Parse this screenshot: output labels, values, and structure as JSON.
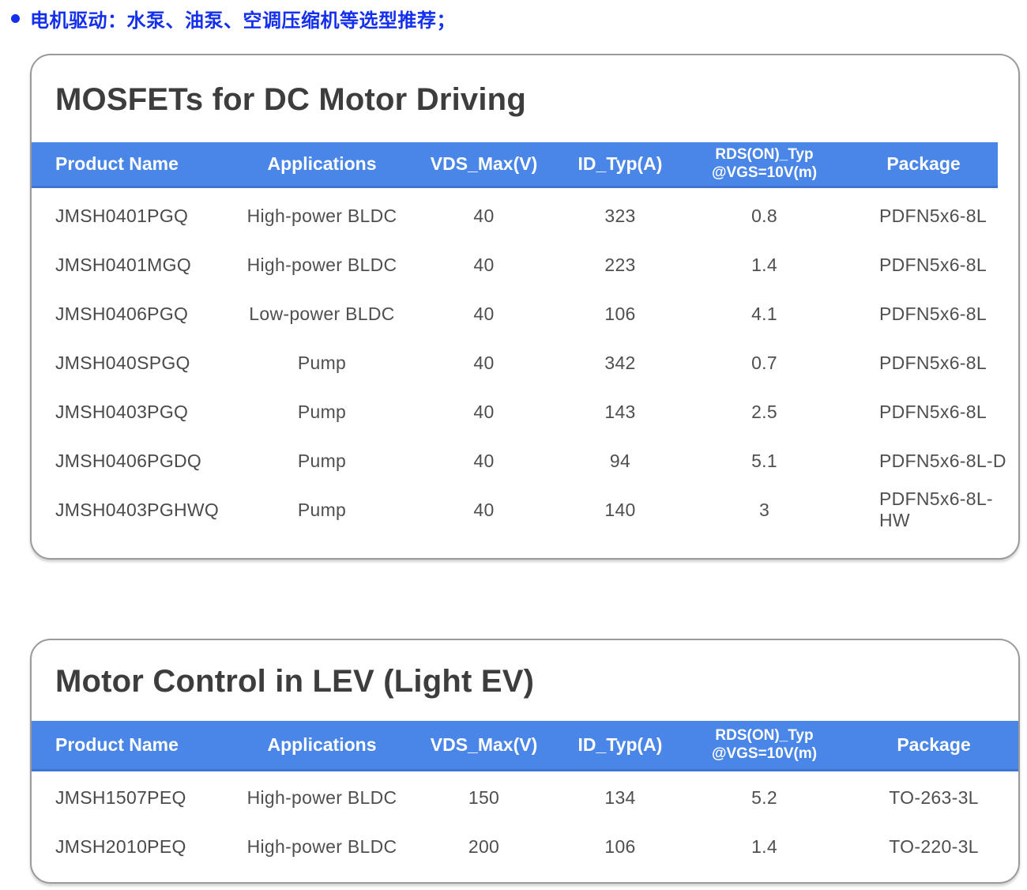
{
  "bullet": {
    "text": "电机驱动：水泵、油泵、空调压缩机等选型推荐；"
  },
  "colors": {
    "bullet_blue": "#1430ee",
    "header_blue": "#4a86e8",
    "header_blue_edge": "#3e74d1",
    "title_text": "#3d3d3d",
    "body_text": "#4f4f4f",
    "card_border": "#9a9a9a",
    "header_text": "#ffffff"
  },
  "tables": [
    {
      "title": "MOSFETs for DC Motor Driving",
      "columns": [
        "Product Name",
        "Applications",
        "VDS_Max(V)",
        "ID_Typ(A)",
        "RDS(ON)_Typ\n@VGS=10V(m)",
        "Package"
      ],
      "rows": [
        [
          "JMSH0401PGQ",
          "High-power BLDC",
          "40",
          "323",
          "0.8",
          "PDFN5x6-8L"
        ],
        [
          "JMSH0401MGQ",
          "High-power BLDC",
          "40",
          "223",
          "1.4",
          "PDFN5x6-8L"
        ],
        [
          "JMSH0406PGQ",
          "Low-power BLDC",
          "40",
          "106",
          "4.1",
          "PDFN5x6-8L"
        ],
        [
          "JMSH040SPGQ",
          "Pump",
          "40",
          "342",
          "0.7",
          "PDFN5x6-8L"
        ],
        [
          "JMSH0403PGQ",
          "Pump",
          "40",
          "143",
          "2.5",
          "PDFN5x6-8L"
        ],
        [
          "JMSH0406PGDQ",
          "Pump",
          "40",
          "94",
          "5.1",
          "PDFN5x6-8L-D"
        ],
        [
          "JMSH0403PGHWQ",
          "Pump",
          "40",
          "140",
          "3",
          "PDFN5x6-8L-HW"
        ]
      ]
    },
    {
      "title": "Motor Control in LEV (Light EV)",
      "columns": [
        "Product Name",
        "Applications",
        "VDS_Max(V)",
        "ID_Typ(A)",
        "RDS(ON)_Typ\n@VGS=10V(m)",
        "Package"
      ],
      "rows": [
        [
          "JMSH1507PEQ",
          "High-power BLDC",
          "150",
          "134",
          "5.2",
          "TO-263-3L"
        ],
        [
          "JMSH2010PEQ",
          "High-power BLDC",
          "200",
          "106",
          "1.4",
          "TO-220-3L"
        ]
      ]
    }
  ]
}
